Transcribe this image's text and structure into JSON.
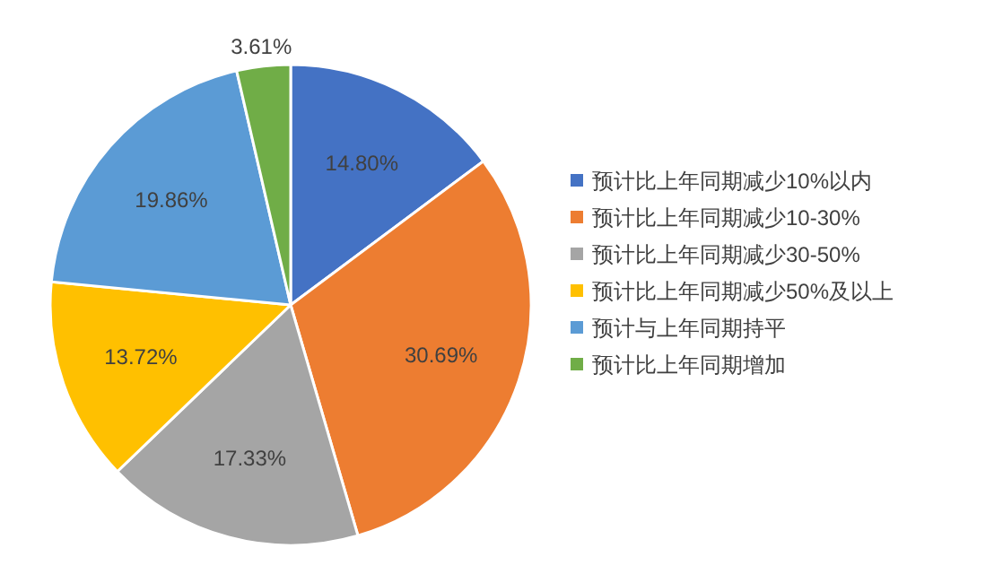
{
  "chart_data": {
    "type": "pie",
    "categories": [
      "预计比上年同期减少10%以内",
      "预计比上年同期减少10-30%",
      "预计比上年同期减少30-50%",
      "预计比上年同期减少50%及以上",
      "预计与上年同期持平",
      "预计比上年同期增加"
    ],
    "values": [
      14.8,
      30.69,
      17.33,
      13.72,
      19.86,
      3.61
    ],
    "colors": [
      "#4472c4",
      "#ed7d31",
      "#a5a5a5",
      "#ffc000",
      "#5b9bd5",
      "#70ad47"
    ],
    "value_labels": [
      "14.80%",
      "30.69%",
      "17.33%",
      "13.72%",
      "19.86%",
      "3.61%"
    ],
    "legend": "right"
  }
}
